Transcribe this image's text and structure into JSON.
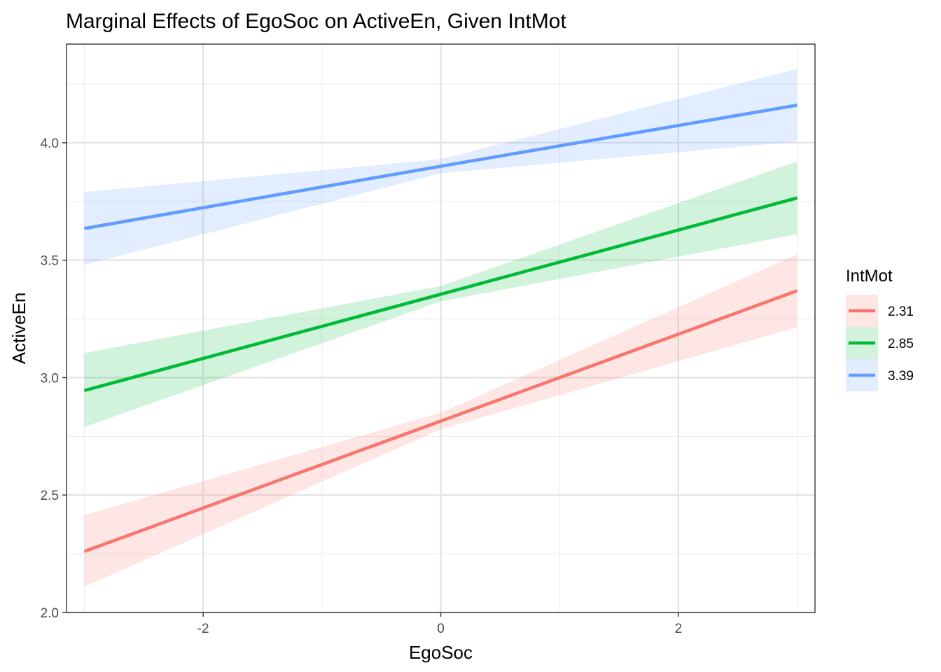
{
  "chart_data": {
    "type": "line",
    "title": "Marginal Effects of EgoSoc on ActiveEn, Given IntMot",
    "xlabel": "EgoSoc",
    "ylabel": "ActiveEn",
    "xlim": [
      -3.15,
      3.15
    ],
    "ylim": [
      2.0,
      4.42
    ],
    "x_ticks": [
      -2,
      0,
      2
    ],
    "x_tick_labels": [
      "-2",
      "0",
      "2"
    ],
    "y_ticks": [
      2.0,
      2.5,
      3.0,
      3.5,
      4.0
    ],
    "y_tick_labels": [
      "2.0",
      "2.5",
      "3.0",
      "3.5",
      "4.0"
    ],
    "grid": true,
    "legend": {
      "title": "IntMot",
      "placement": "right"
    },
    "series": [
      {
        "name": "2.31",
        "color": "#F8766D",
        "x": [
          -3,
          0,
          3
        ],
        "y": [
          2.26,
          2.815,
          3.37
        ],
        "ci_low": [
          2.11,
          2.78,
          3.215
        ],
        "ci_high": [
          2.415,
          2.85,
          3.525
        ]
      },
      {
        "name": "2.85",
        "color": "#00BA38",
        "x": [
          -3,
          0,
          3
        ],
        "y": [
          2.945,
          3.355,
          3.765
        ],
        "ci_low": [
          2.79,
          3.325,
          3.61
        ],
        "ci_high": [
          3.105,
          3.39,
          3.92
        ]
      },
      {
        "name": "3.39",
        "color": "#619CFF",
        "x": [
          -3,
          0,
          3
        ],
        "y": [
          3.635,
          3.9,
          4.16
        ],
        "ci_low": [
          3.48,
          3.87,
          4.005
        ],
        "ci_high": [
          3.79,
          3.93,
          4.315
        ]
      }
    ]
  }
}
